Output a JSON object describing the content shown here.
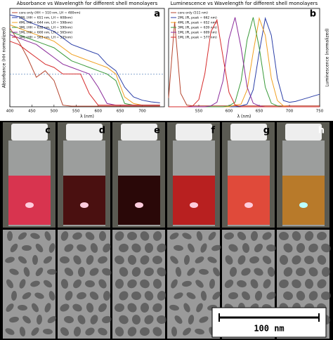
{
  "chart_data": [
    {
      "type": "line",
      "title": "Absorbance vs Wavelength for different shell monolayers",
      "panel": "a",
      "x_label": "λ (nm)",
      "y_label": "Absorbance (HH normalized)",
      "xlim": [
        400,
        750
      ],
      "xticks": [
        400,
        450,
        500,
        550,
        600,
        650,
        700
      ],
      "ylim": [
        0,
        3
      ],
      "reference_line": 1,
      "x": [
        400,
        420,
        440,
        460,
        480,
        500,
        520,
        540,
        560,
        580,
        600,
        620,
        640,
        660,
        680,
        700,
        720,
        740
      ],
      "series": [
        {
          "name": "core only (HH = 510 nm, LH = 480nm)",
          "color": "#b5452f",
          "values": [
            2.4,
            2.0,
            1.5,
            0.9,
            1.1,
            0.8,
            0.05,
            0.02,
            0.02,
            0.02,
            0.02,
            0.02,
            0.02,
            0.02,
            0.02,
            0.02,
            0.02,
            0.02
          ]
        },
        {
          "name": "2ML (HH = 651 nm, LH = 608nm)",
          "color": "#2b3fa8",
          "values": [
            2.8,
            2.75,
            2.6,
            2.5,
            2.4,
            2.3,
            2.1,
            1.9,
            1.8,
            1.7,
            1.6,
            1.3,
            1.1,
            0.6,
            0.3,
            0.2,
            0.15,
            0.12
          ]
        },
        {
          "name": "4ML (HH = 644 nm, LH = 598nm)",
          "color": "#f0a020",
          "values": [
            2.5,
            2.4,
            2.3,
            2.2,
            2.1,
            2.0,
            1.8,
            1.6,
            1.5,
            1.4,
            1.3,
            1.2,
            1.0,
            0.3,
            0.1,
            0.05,
            0.05,
            0.05
          ]
        },
        {
          "name": "3ML (HH = 632 nm, LH = 590nm)",
          "color": "#3a9a3a",
          "values": [
            2.3,
            2.2,
            2.1,
            2.0,
            1.9,
            1.8,
            1.6,
            1.4,
            1.3,
            1.2,
            1.1,
            1.0,
            0.8,
            0.1,
            0.05,
            0.05,
            0.05,
            0.05
          ]
        },
        {
          "name": "1ML (HH = 600 nm, LH = 565nm)",
          "color": "#8a2a9a",
          "values": [
            2.2,
            2.1,
            2.0,
            1.9,
            1.7,
            1.5,
            1.3,
            1.2,
            1.1,
            1.0,
            0.6,
            0.1,
            0.05,
            0.05,
            0.05,
            0.05,
            0.05,
            0.05
          ]
        },
        {
          "name": "3ML (HH = 563 nm, LH = 535nm)",
          "color": "#d62b2b",
          "values": [
            2.0,
            1.9,
            1.7,
            1.5,
            1.3,
            1.2,
            1.0,
            1.0,
            1.0,
            0.4,
            0.05,
            0.05,
            0.05,
            0.05,
            0.05,
            0.05,
            0.05,
            0.05
          ]
        }
      ]
    },
    {
      "type": "line",
      "title": "Luminescence vs Wavelength for different shell monolayers",
      "panel": "b",
      "x_label": "λ (nm)",
      "y_label": "Luminescence (normalized)",
      "xlim": [
        500,
        750
      ],
      "xticks": [
        550,
        600,
        650,
        700,
        750
      ],
      "ylim": [
        0,
        1.1
      ],
      "x": [
        500,
        510,
        520,
        530,
        540,
        550,
        560,
        570,
        580,
        590,
        600,
        610,
        620,
        630,
        640,
        650,
        660,
        670,
        680,
        690,
        700,
        710,
        720,
        730,
        740,
        750
      ],
      "series": [
        {
          "name": "core only (511 nm)",
          "color": "#b5452f",
          "values": [
            0.1,
            0.95,
            0.15,
            0.02,
            0.01,
            0.01,
            0.01,
            0.01,
            0.01,
            0.01,
            0.01,
            0.01,
            0.01,
            0.01,
            0.01,
            0.01,
            0.01,
            0.01,
            0.01,
            0.01,
            0.01,
            0.01,
            0.01,
            0.01,
            0.01,
            0.01
          ]
        },
        {
          "name": "2ML (PL peak = 662 nm)",
          "color": "#2b3fa8",
          "values": [
            0,
            0,
            0,
            0,
            0,
            0,
            0,
            0,
            0,
            0,
            0,
            0,
            0.01,
            0.03,
            0.19,
            0.61,
            0.99,
            0.8,
            0.32,
            0.07,
            0.05,
            0.06,
            0.08,
            0.1,
            0.12,
            0.14
          ]
        },
        {
          "name": "4ML (PL peak = 652 nm)",
          "color": "#f0a020",
          "values": [
            0,
            0,
            0,
            0,
            0,
            0,
            0,
            0,
            0,
            0,
            0,
            0.02,
            0.03,
            0.19,
            0.61,
            0.99,
            0.8,
            0.32,
            0.07,
            0.01,
            0,
            0,
            0,
            0,
            0,
            0
          ]
        },
        {
          "name": "3ML (PL peak = 639 nm)",
          "color": "#3a9a3a",
          "values": [
            0,
            0,
            0,
            0,
            0,
            0,
            0,
            0,
            0,
            0,
            0.01,
            0.05,
            0.29,
            0.75,
            1.0,
            0.66,
            0.22,
            0.04,
            0.01,
            0,
            0,
            0,
            0,
            0,
            0,
            0
          ]
        },
        {
          "name": "1ML (PL peak = 609 nm)",
          "color": "#8a2a9a",
          "values": [
            0,
            0,
            0,
            0,
            0,
            0,
            0,
            0.01,
            0.05,
            0.29,
            0.76,
            1.0,
            0.66,
            0.22,
            0.04,
            0.01,
            0,
            0,
            0,
            0,
            0,
            0,
            0,
            0,
            0,
            0
          ]
        },
        {
          "name": "1ML (PL peak = 577 nm)",
          "color": "#d62b2b",
          "values": [
            0,
            0,
            0,
            0,
            0.01,
            0.08,
            0.37,
            0.84,
            0.97,
            0.56,
            0.16,
            0.02,
            0,
            0,
            0,
            0,
            0,
            0,
            0,
            0,
            0,
            0,
            0,
            0,
            0,
            0
          ]
        }
      ]
    }
  ],
  "photos": {
    "labels": [
      "c",
      "d",
      "e",
      "f",
      "g",
      "h"
    ]
  },
  "tem": {
    "scale_bar": "100 nm"
  }
}
